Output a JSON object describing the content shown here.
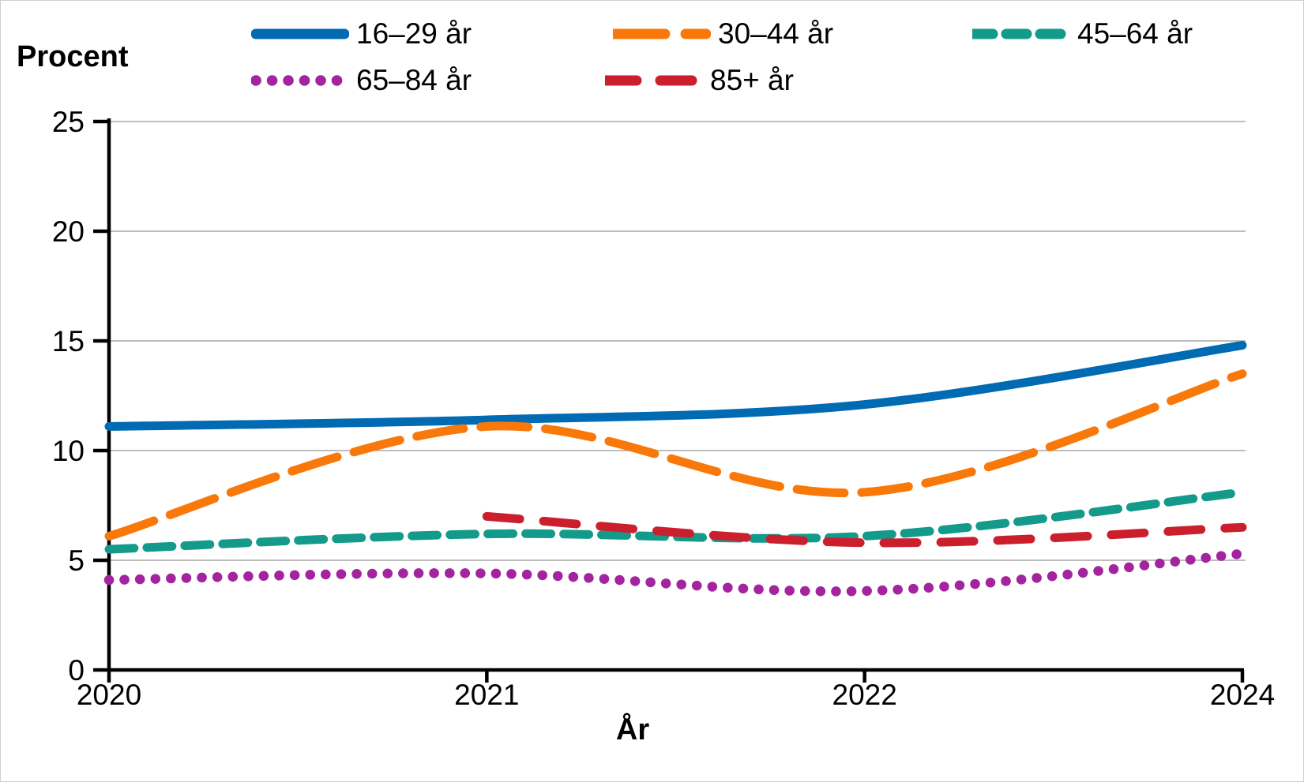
{
  "chart_data": {
    "type": "line",
    "title": "",
    "ylabel": "Procent",
    "xlabel": "År",
    "categories": [
      "2020",
      "2021",
      "2022",
      "2024"
    ],
    "yticks": [
      0,
      5,
      10,
      15,
      20,
      25
    ],
    "ylim": [
      0,
      25
    ],
    "grid": true,
    "legend_position": "top",
    "gridline_color": "#a8a8a8",
    "axis_color": "#000000",
    "series": [
      {
        "name": "16–29 år",
        "color": "#006ab3",
        "style": "solid",
        "values": [
          11.1,
          11.4,
          12.1,
          14.8
        ]
      },
      {
        "name": "30–44 år",
        "color": "#f8790a",
        "style": "long-short-dash",
        "values": [
          6.1,
          11.1,
          8.1,
          13.5
        ]
      },
      {
        "name": "45–64 år",
        "color": "#149a8b",
        "style": "dash",
        "values": [
          5.5,
          6.2,
          6.1,
          8.1
        ]
      },
      {
        "name": "65–84 år",
        "color": "#a3249e",
        "style": "dot",
        "values": [
          4.1,
          4.4,
          3.6,
          5.3
        ]
      },
      {
        "name": "85+ år",
        "color": "#cb1f2e",
        "style": "sparse-dash",
        "values": [
          null,
          7.0,
          5.8,
          6.5
        ]
      }
    ]
  }
}
